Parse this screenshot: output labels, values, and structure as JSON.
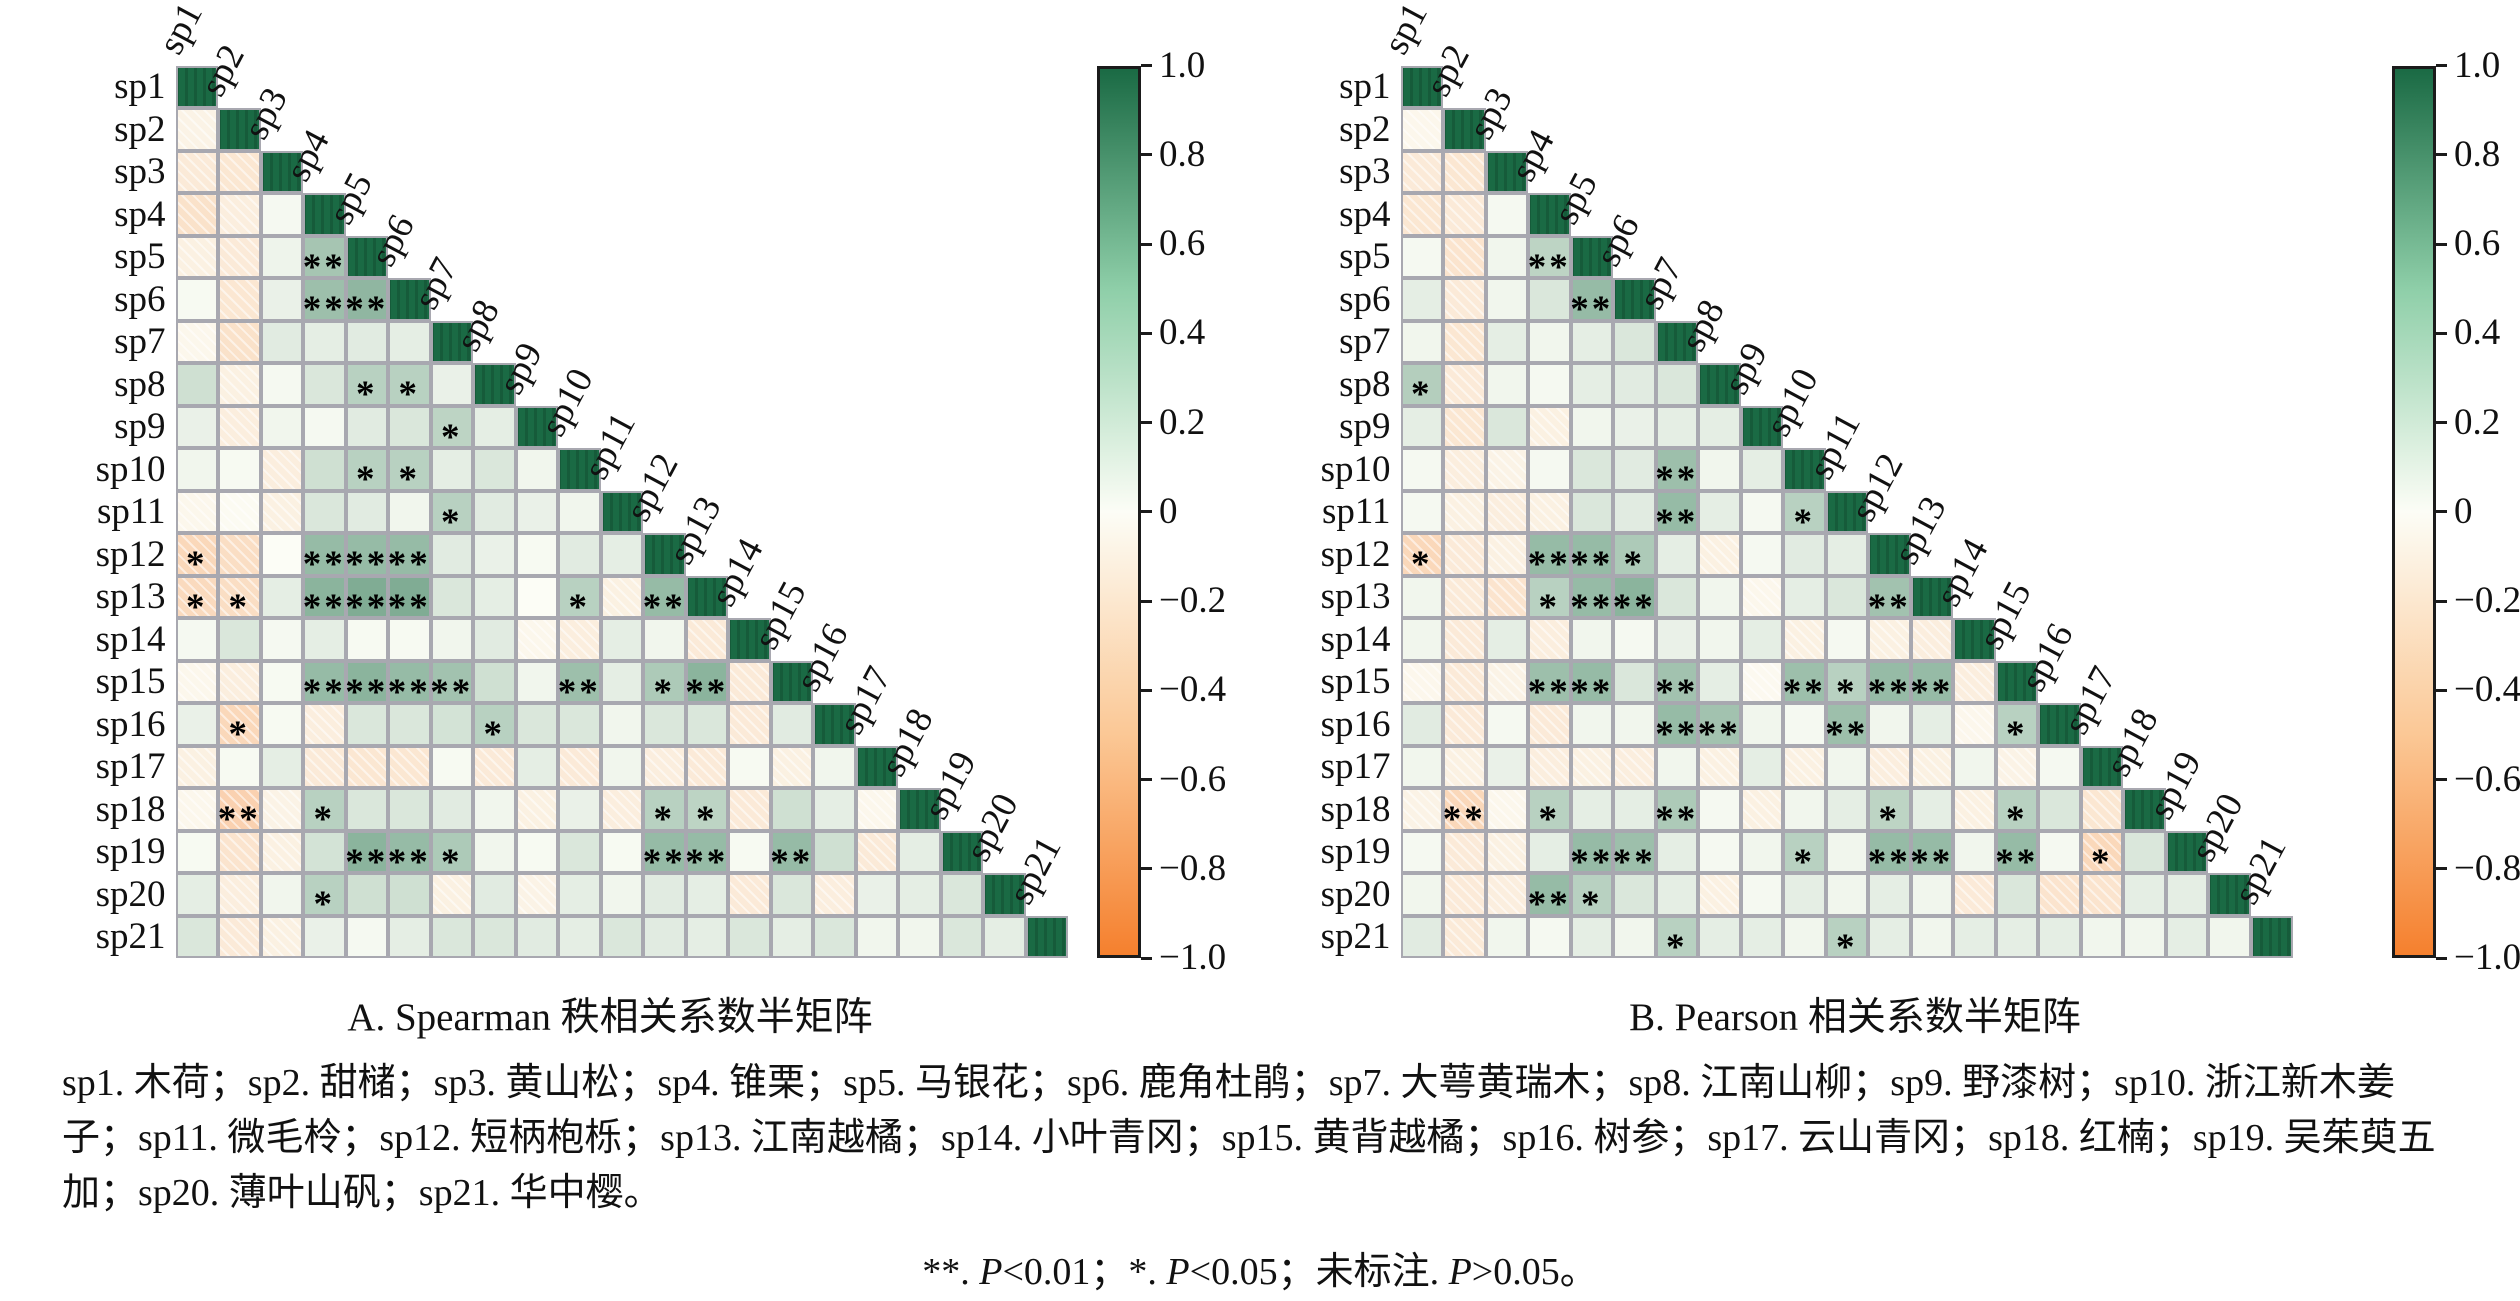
{
  "species_legend": {
    "text": "sp1. 木荷；sp2. 甜槠；sp3. 黄山松；sp4. 锥栗；sp5. 马银花；sp6. 鹿角杜鹃；sp7. 大萼黄瑞木；sp8. 江南山柳；sp9. 野漆树；sp10. 浙江新木姜子；sp11. 微毛柃；sp12. 短柄枹栎；sp13. 江南越橘；sp14. 小叶青冈；sp15. 黄背越橘；sp16. 树参；sp17. 云山青冈；sp18. 红楠；sp19. 吴茱萸五加；sp20. 薄叶山矾；sp21. 华中樱。"
  },
  "footnote": {
    "segments": [
      {
        "t": "**. ",
        "i": false
      },
      {
        "t": "P",
        "i": true
      },
      {
        "t": "<0.01；*. ",
        "i": false
      },
      {
        "t": "P",
        "i": true
      },
      {
        "t": "<0.05；未标注. ",
        "i": false
      },
      {
        "t": "P",
        "i": true
      },
      {
        "t": ">0.05。",
        "i": false
      }
    ]
  },
  "colorbar": {
    "range": [
      -1,
      1
    ],
    "tick_labels": [
      "1.0",
      "0.8",
      "0.6",
      "0.4",
      "0.2",
      "0",
      "−0.2",
      "−0.4",
      "−0.6",
      "−0.8",
      "−1.0"
    ],
    "color_positive": "#1a6a44",
    "color_mid": "#fcfdf6",
    "color_negative": "#f5802e"
  },
  "chart_data": {
    "type": "heatmap",
    "subtype": "lower-triangular correlation half-matrix",
    "value_range": [
      -1,
      1
    ],
    "significance_legend": "**. P<0.01；*. P<0.05；未标注. P>0.05。",
    "matrices": [
      {
        "id": "A",
        "caption": "A. Spearman 秩相关系数半矩阵",
        "labels": [
          "sp1",
          "sp2",
          "sp3",
          "sp4",
          "sp5",
          "sp6",
          "sp7",
          "sp8",
          "sp9",
          "sp10",
          "sp11",
          "sp12",
          "sp13",
          "sp14",
          "sp15",
          "sp16",
          "sp17",
          "sp18",
          "sp19",
          "sp20",
          "sp21"
        ],
        "diag_value": 1.0,
        "lower": [
          [],
          [
            -0.08
          ],
          [
            -0.15,
            -0.18
          ],
          [
            -0.22,
            -0.12,
            0.03
          ],
          [
            -0.1,
            -0.15,
            0.06,
            0.38
          ],
          [
            0.02,
            -0.18,
            0.08,
            0.42,
            0.48
          ],
          [
            -0.05,
            -0.22,
            0.12,
            0.1,
            0.12,
            0.1
          ],
          [
            0.2,
            -0.1,
            0.03,
            0.15,
            0.3,
            0.3,
            0.08
          ],
          [
            0.08,
            -0.12,
            0.05,
            0.03,
            0.12,
            0.15,
            0.28,
            0.1
          ],
          [
            0.05,
            0.02,
            -0.12,
            0.2,
            0.3,
            0.3,
            0.1,
            0.15,
            0.05
          ],
          [
            -0.05,
            -0.02,
            -0.1,
            0.15,
            0.12,
            0.05,
            0.3,
            0.12,
            0.08,
            0.05
          ],
          [
            -0.3,
            -0.25,
            0.0,
            0.45,
            0.45,
            0.45,
            0.12,
            0.08,
            0.02,
            0.12,
            0.1
          ],
          [
            -0.28,
            -0.25,
            0.1,
            0.5,
            0.55,
            0.55,
            0.15,
            0.1,
            0.0,
            0.3,
            -0.1,
            0.45
          ],
          [
            0.03,
            0.15,
            0.03,
            0.1,
            0.02,
            0.02,
            0.05,
            0.12,
            -0.05,
            -0.12,
            0.1,
            0.05,
            -0.15
          ],
          [
            -0.05,
            -0.12,
            0.02,
            0.45,
            0.5,
            0.45,
            0.4,
            0.2,
            0.05,
            0.42,
            0.1,
            0.35,
            0.5,
            -0.15
          ],
          [
            0.08,
            -0.3,
            0.02,
            -0.12,
            0.15,
            0.15,
            0.18,
            0.3,
            0.15,
            0.15,
            0.05,
            0.15,
            0.15,
            -0.15,
            0.12
          ],
          [
            -0.1,
            0.02,
            0.1,
            -0.15,
            -0.18,
            -0.18,
            0.02,
            -0.15,
            0.1,
            -0.15,
            0.05,
            -0.12,
            -0.15,
            0.02,
            -0.1,
            0.05
          ],
          [
            -0.05,
            -0.35,
            -0.08,
            0.3,
            0.15,
            0.15,
            0.12,
            0.05,
            -0.1,
            0.08,
            -0.12,
            0.3,
            0.28,
            -0.15,
            0.2,
            0.1,
            -0.05
          ],
          [
            0.02,
            -0.2,
            -0.1,
            0.18,
            0.5,
            0.45,
            0.35,
            0.05,
            0.02,
            0.15,
            0.02,
            0.45,
            0.45,
            0.02,
            0.45,
            0.2,
            -0.15,
            0.1
          ],
          [
            0.1,
            -0.12,
            0.05,
            0.3,
            0.2,
            0.2,
            -0.1,
            0.12,
            -0.08,
            0.1,
            0.05,
            0.12,
            0.1,
            -0.15,
            0.15,
            -0.12,
            0.08,
            0.1,
            0.15
          ],
          [
            0.15,
            -0.15,
            -0.1,
            0.08,
            0.03,
            0.1,
            0.15,
            0.15,
            0.12,
            0.1,
            0.15,
            0.12,
            0.1,
            0.15,
            0.1,
            0.15,
            0.05,
            0.05,
            0.15,
            0.1
          ]
        ],
        "sig": [
          [],
          [
            ""
          ],
          [
            "",
            ""
          ],
          [
            "",
            "",
            ""
          ],
          [
            "",
            "",
            "",
            "**"
          ],
          [
            "",
            "",
            "",
            "**",
            "**"
          ],
          [
            "",
            "",
            "",
            "",
            "",
            ""
          ],
          [
            "",
            "",
            "",
            "",
            "*",
            "*",
            ""
          ],
          [
            "",
            "",
            "",
            "",
            "",
            "",
            "*",
            ""
          ],
          [
            "",
            "",
            "",
            "",
            "*",
            "*",
            "",
            "",
            ""
          ],
          [
            "",
            "",
            "",
            "",
            "",
            "",
            "*",
            "",
            "",
            ""
          ],
          [
            "*",
            "",
            "",
            "**",
            "**",
            "**",
            "",
            "",
            "",
            "",
            ""
          ],
          [
            "*",
            "*",
            "",
            "**",
            "**",
            "**",
            "",
            "",
            "",
            "*",
            "",
            "**"
          ],
          [
            "",
            "",
            "",
            "",
            "",
            "",
            "",
            "",
            "",
            "",
            "",
            "",
            ""
          ],
          [
            "",
            "",
            "",
            "**",
            "**",
            "**",
            "**",
            "",
            "",
            "**",
            "",
            "*",
            "**",
            ""
          ],
          [
            "",
            "*",
            "",
            "",
            "",
            "",
            "",
            "*",
            "",
            "",
            "",
            "",
            "",
            "",
            ""
          ],
          [
            "",
            "",
            "",
            "",
            "",
            "",
            "",
            "",
            "",
            "",
            "",
            "",
            "",
            "",
            "",
            ""
          ],
          [
            "",
            "**",
            "",
            "*",
            "",
            "",
            "",
            "",
            "",
            "",
            "",
            "*",
            "*",
            "",
            "",
            "",
            ""
          ],
          [
            "",
            "",
            "",
            "",
            "**",
            "**",
            "*",
            "",
            "",
            "",
            "",
            "**",
            "**",
            "",
            "**",
            "",
            "",
            ""
          ],
          [
            "",
            "",
            "",
            "*",
            "",
            "",
            "",
            "",
            "",
            "",
            "",
            "",
            "",
            "",
            "",
            "",
            "",
            "",
            ""
          ],
          [
            "",
            "",
            "",
            "",
            "",
            "",
            "",
            "",
            "",
            "",
            "",
            "",
            "",
            "",
            "",
            "",
            "",
            "",
            "",
            ""
          ]
        ]
      },
      {
        "id": "B",
        "caption": "B. Pearson 相关系数半矩阵",
        "labels": [
          "sp1",
          "sp2",
          "sp3",
          "sp4",
          "sp5",
          "sp6",
          "sp7",
          "sp8",
          "sp9",
          "sp10",
          "sp11",
          "sp12",
          "sp13",
          "sp14",
          "sp15",
          "sp16",
          "sp17",
          "sp18",
          "sp19",
          "sp20",
          "sp21"
        ],
        "diag_value": 1.0,
        "lower": [
          [],
          [
            -0.05
          ],
          [
            -0.15,
            -0.18
          ],
          [
            -0.18,
            -0.15,
            0.03
          ],
          [
            0.03,
            -0.2,
            0.05,
            0.28
          ],
          [
            0.1,
            -0.15,
            0.05,
            0.15,
            0.45
          ],
          [
            0.05,
            -0.18,
            0.1,
            0.05,
            0.1,
            0.15
          ],
          [
            0.32,
            -0.15,
            0.05,
            0.03,
            0.1,
            0.12,
            0.15
          ],
          [
            0.1,
            -0.18,
            0.15,
            -0.1,
            0.05,
            0.08,
            0.1,
            0.1
          ],
          [
            0.03,
            -0.12,
            -0.08,
            0.03,
            0.15,
            0.12,
            0.42,
            0.05,
            0.1
          ],
          [
            0.03,
            -0.1,
            -0.12,
            -0.1,
            0.15,
            0.12,
            0.45,
            0.1,
            0.03,
            0.3
          ],
          [
            -0.3,
            -0.15,
            -0.1,
            0.45,
            0.45,
            0.35,
            0.1,
            -0.1,
            0.03,
            0.12,
            0.1
          ],
          [
            0.05,
            -0.15,
            -0.2,
            0.3,
            0.45,
            0.5,
            0.15,
            0.05,
            -0.05,
            0.1,
            0.15,
            0.4
          ],
          [
            0.05,
            -0.15,
            0.1,
            -0.12,
            0.05,
            0.03,
            0.08,
            0.05,
            0.1,
            -0.1,
            0.03,
            -0.1,
            -0.12
          ],
          [
            -0.05,
            -0.15,
            -0.08,
            0.42,
            0.45,
            0.15,
            0.4,
            0.1,
            -0.03,
            0.42,
            0.3,
            0.45,
            0.45,
            -0.12
          ],
          [
            0.12,
            -0.15,
            0.03,
            -0.15,
            0.05,
            0.05,
            0.45,
            0.4,
            0.05,
            0.03,
            0.42,
            0.05,
            0.1,
            -0.05,
            0.3
          ],
          [
            0.05,
            -0.1,
            0.08,
            -0.12,
            -0.1,
            -0.12,
            0.05,
            -0.1,
            0.1,
            -0.1,
            0.05,
            -0.12,
            -0.1,
            0.05,
            -0.08,
            0.03
          ],
          [
            -0.08,
            -0.3,
            -0.05,
            0.3,
            0.1,
            0.1,
            0.35,
            0.03,
            -0.1,
            0.05,
            0.1,
            0.28,
            0.1,
            -0.1,
            0.3,
            0.15,
            -0.18
          ],
          [
            0.03,
            -0.15,
            -0.1,
            0.1,
            0.45,
            0.42,
            0.1,
            0.03,
            0.05,
            0.3,
            0.05,
            0.45,
            0.45,
            0.05,
            0.45,
            0.03,
            -0.3,
            0.15
          ],
          [
            0.05,
            -0.15,
            -0.12,
            0.45,
            0.3,
            0.15,
            0.1,
            -0.1,
            0.03,
            0.1,
            0.05,
            0.1,
            0.05,
            -0.15,
            0.15,
            -0.2,
            -0.2,
            0.1,
            0.1
          ],
          [
            0.12,
            -0.15,
            0.05,
            0.03,
            0.1,
            0.05,
            0.3,
            0.1,
            0.1,
            0.05,
            0.3,
            0.1,
            0.05,
            0.1,
            0.1,
            0.1,
            0.05,
            0.05,
            0.1,
            0.05
          ]
        ],
        "sig": [
          [],
          [
            ""
          ],
          [
            "",
            ""
          ],
          [
            "",
            "",
            ""
          ],
          [
            "",
            "",
            "",
            "**"
          ],
          [
            "",
            "",
            "",
            "",
            "**"
          ],
          [
            "",
            "",
            "",
            "",
            "",
            ""
          ],
          [
            "*",
            "",
            "",
            "",
            "",
            "",
            ""
          ],
          [
            "",
            "",
            "",
            "",
            "",
            "",
            "",
            ""
          ],
          [
            "",
            "",
            "",
            "",
            "",
            "",
            "**",
            "",
            ""
          ],
          [
            "",
            "",
            "",
            "",
            "",
            "",
            "**",
            "",
            "",
            "*"
          ],
          [
            "*",
            "",
            "",
            "**",
            "**",
            "*",
            "",
            "",
            "",
            "",
            ""
          ],
          [
            "",
            "",
            "",
            "*",
            "**",
            "**",
            "",
            "",
            "",
            "",
            "",
            "**"
          ],
          [
            "",
            "",
            "",
            "",
            "",
            "",
            "",
            "",
            "",
            "",
            "",
            "",
            ""
          ],
          [
            "",
            "",
            "",
            "**",
            "**",
            "",
            "**",
            "",
            "",
            "**",
            "*",
            "**",
            "**",
            ""
          ],
          [
            "",
            "",
            "",
            "",
            "",
            "",
            "**",
            "**",
            "",
            "",
            "**",
            "",
            "",
            "",
            "*"
          ],
          [
            "",
            "",
            "",
            "",
            "",
            "",
            "",
            "",
            "",
            "",
            "",
            "",
            "",
            "",
            "",
            ""
          ],
          [
            "",
            "**",
            "",
            "*",
            "",
            "",
            "**",
            "",
            "",
            "",
            "",
            "*",
            "",
            "",
            "*",
            "",
            ""
          ],
          [
            "",
            "",
            "",
            "",
            "**",
            "**",
            "",
            "",
            "",
            "*",
            "",
            "**",
            "**",
            "",
            "**",
            "",
            "*",
            ""
          ],
          [
            "",
            "",
            "",
            "**",
            "*",
            "",
            "",
            "",
            "",
            "",
            "",
            "",
            "",
            "",
            "",
            "",
            "",
            "",
            ""
          ],
          [
            "",
            "",
            "",
            "",
            "",
            "",
            "*",
            "",
            "",
            "",
            "*",
            "",
            "",
            "",
            "",
            "",
            "",
            "",
            "",
            ""
          ]
        ]
      }
    ]
  }
}
